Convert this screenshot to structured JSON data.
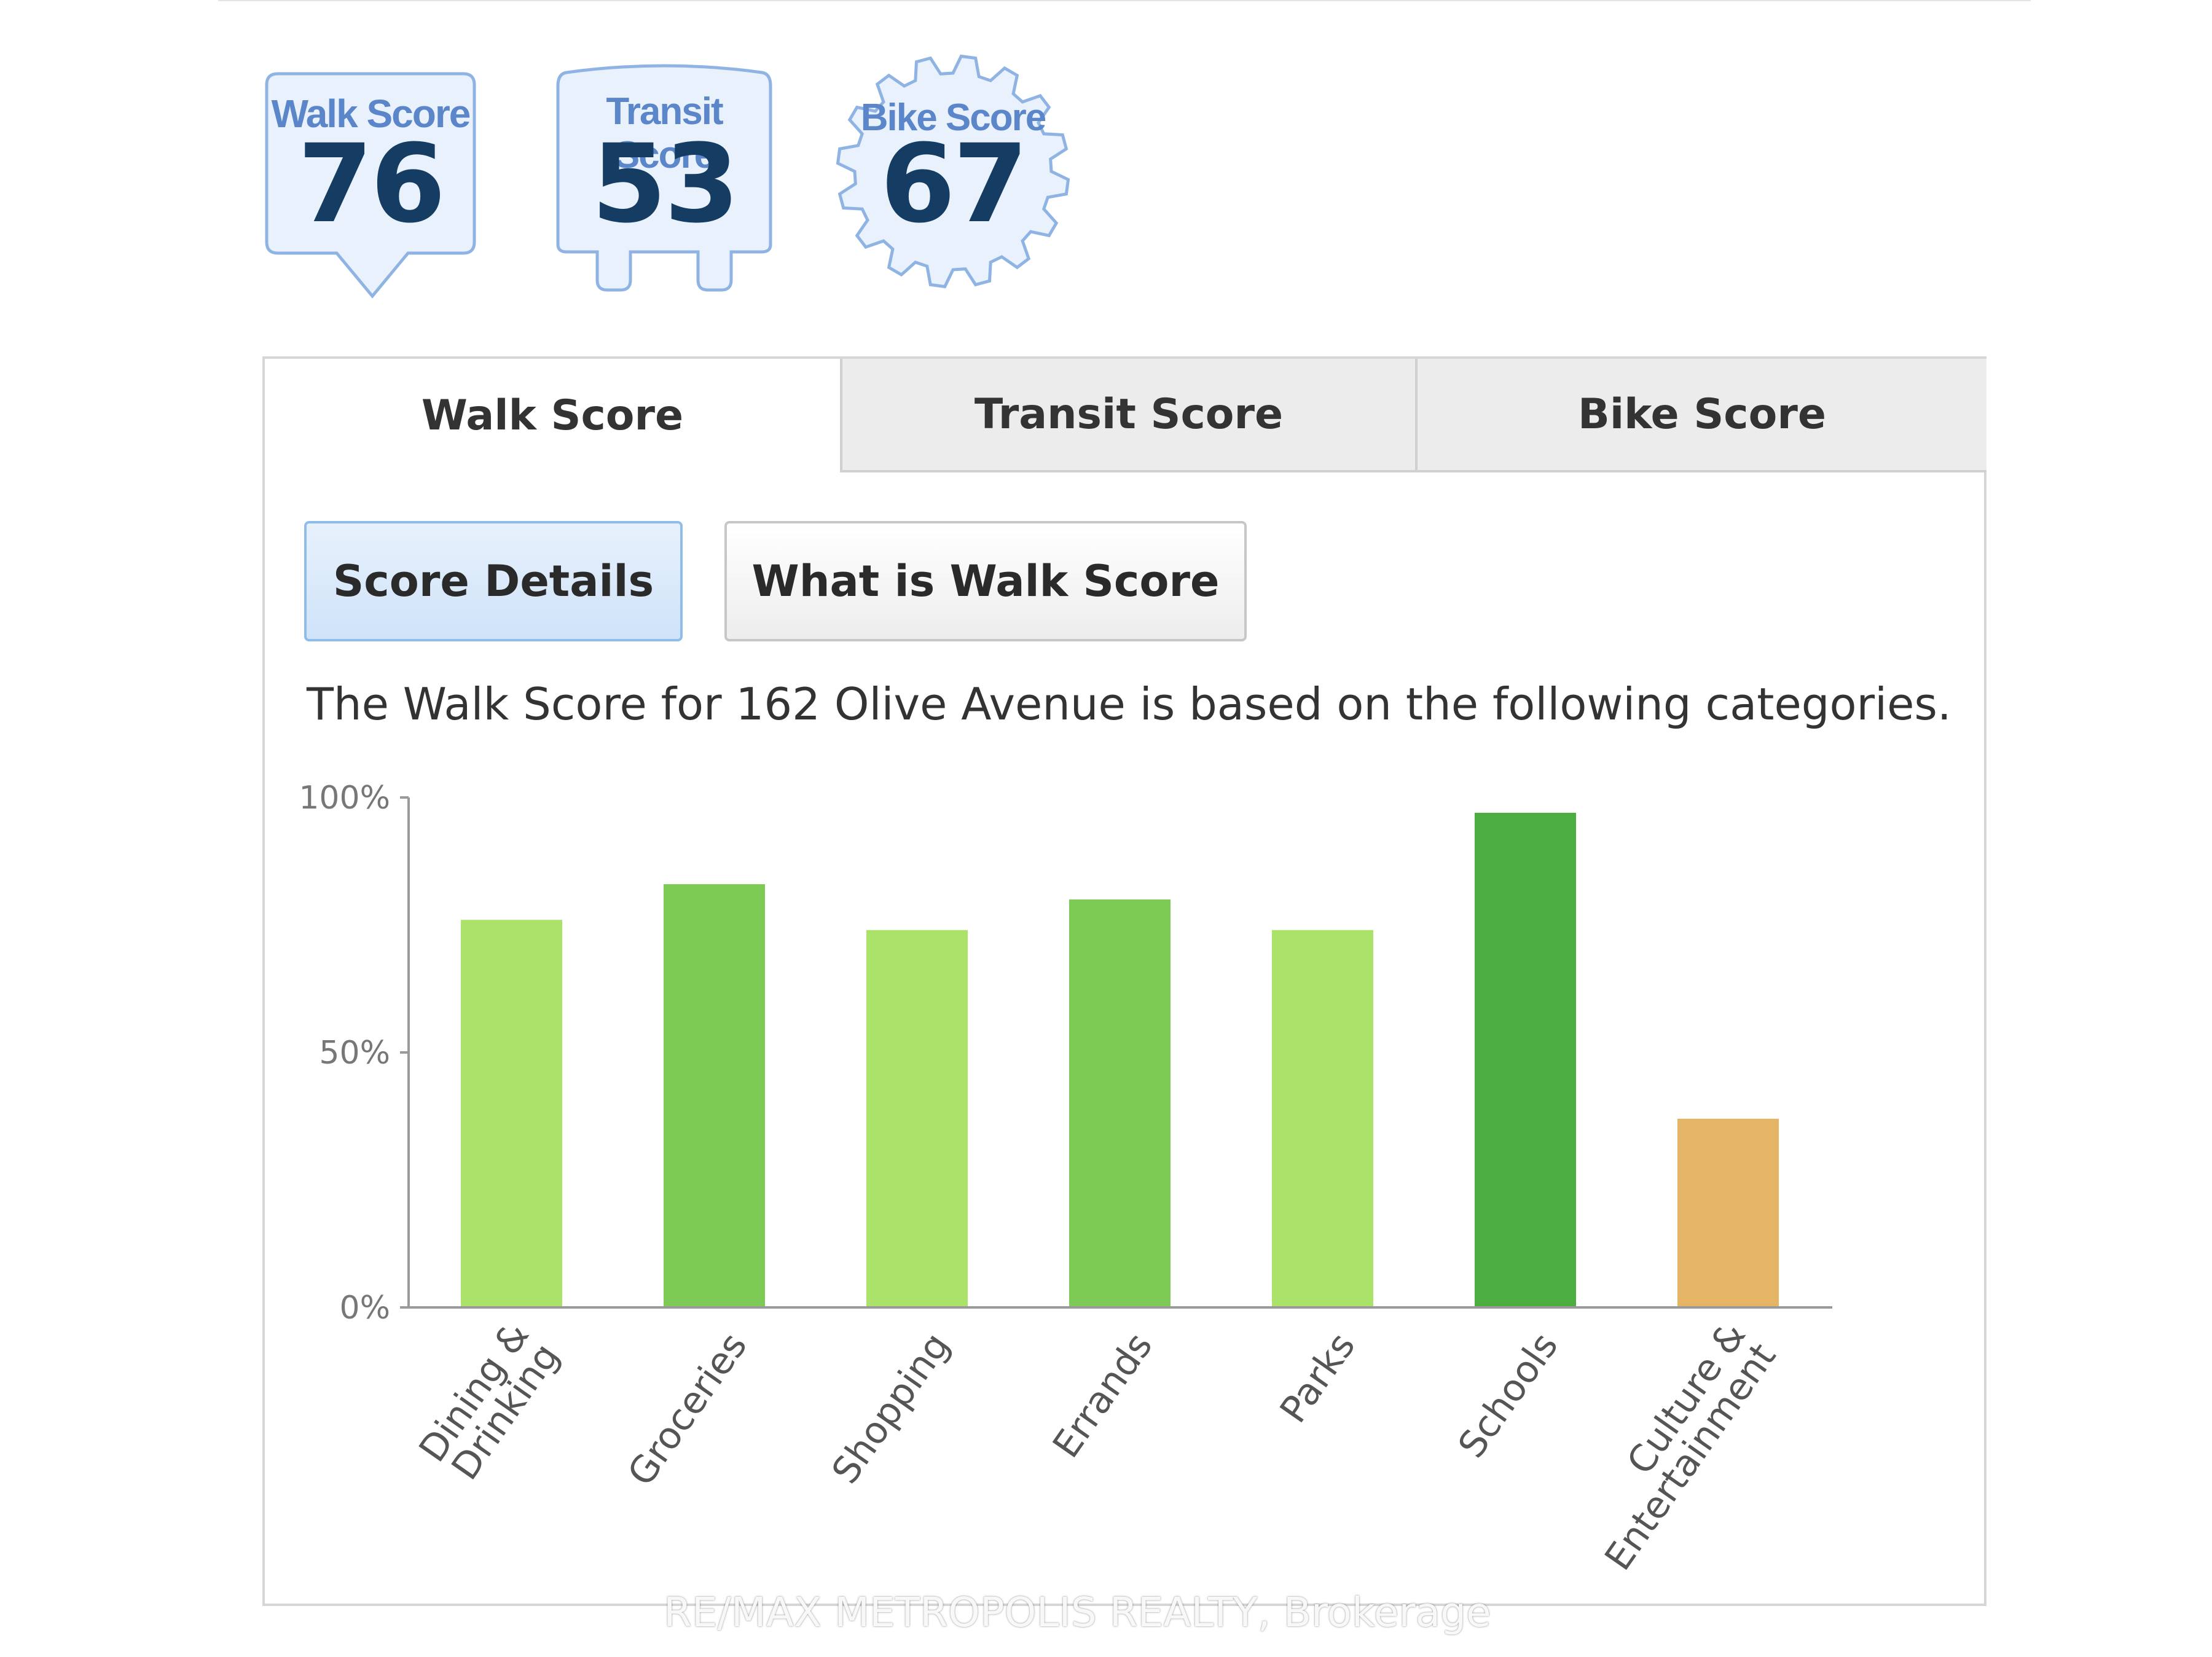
{
  "badges": [
    {
      "label": "Walk Score",
      "value": "76"
    },
    {
      "label": "Transit Score",
      "value": "53"
    },
    {
      "label": "Bike Score",
      "value": "67"
    }
  ],
  "tabs": [
    {
      "label": "Walk Score",
      "active": true
    },
    {
      "label": "Transit Score",
      "active": false
    },
    {
      "label": "Bike Score",
      "active": false
    }
  ],
  "subtabs": {
    "details_label": "Score Details",
    "what_label": "What is Walk Score"
  },
  "description": "The Walk Score for 162 Olive Avenue is based on the following categories.",
  "colors": {
    "badge_label": "#5b86c9",
    "badge_number": "#153c62",
    "bar_light": "#abe26a",
    "bar_mid": "#7dcb55",
    "bar_dark": "#4cae41",
    "bar_orange": "#e6b465"
  },
  "chart_data": {
    "type": "bar",
    "categories": [
      "Dining & Drinking",
      "Groceries",
      "Shopping",
      "Errands",
      "Parks",
      "Schools",
      "Culture & Entertainment"
    ],
    "category_lines": [
      [
        "Dining &",
        "Drinking"
      ],
      [
        "Groceries"
      ],
      [
        "Shopping"
      ],
      [
        "Errands"
      ],
      [
        "Parks"
      ],
      [
        "Schools"
      ],
      [
        "Culture &",
        "Entertainment"
      ]
    ],
    "values": [
      76,
      83,
      74,
      80,
      74,
      97,
      37
    ],
    "bar_colors": [
      "#abe26a",
      "#7dcb55",
      "#abe26a",
      "#7dcb55",
      "#abe26a",
      "#4cae41",
      "#e6b465"
    ],
    "ylim": [
      0,
      100
    ],
    "yticks": [
      "0%",
      "50%",
      "100%"
    ],
    "ytick_values": [
      0,
      50,
      100
    ],
    "grid": false
  },
  "watermark": "RE/MAX METROPOLIS REALTY, Brokerage"
}
